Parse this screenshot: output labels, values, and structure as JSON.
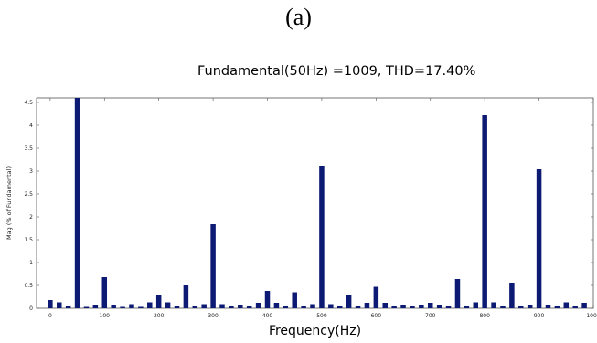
{
  "panel_label": "(a)",
  "chart_data": {
    "type": "bar",
    "title": "Fundamental(50Hz) =1009, THD=17.40%",
    "xlabel": "Frequency(Hz)",
    "ylabel": "Mag (% of Fundamental)",
    "xlim": [
      -25,
      1000
    ],
    "ylim": [
      0,
      4.6
    ],
    "xticks": [
      0,
      100,
      200,
      300,
      400,
      500,
      600,
      700,
      800,
      900,
      1000
    ],
    "xtick_labels": [
      "0",
      "100",
      "200",
      "300",
      "400",
      "500",
      "600",
      "700",
      "800",
      "900",
      "1000"
    ],
    "yticks": [
      0,
      0.5,
      1,
      1.5,
      2,
      2.5,
      3,
      3.5,
      4,
      4.5
    ],
    "ytick_labels": [
      "0",
      "0.5",
      "1",
      "1.5",
      "2",
      "2.5",
      "3",
      "3.5",
      "4",
      "4.5"
    ],
    "bar_color": "#0d1a73",
    "series": [
      {
        "x": [
          0,
          16.67,
          33.33,
          50,
          66.67,
          83.33,
          100,
          116.67,
          133.33,
          150,
          166.67,
          183.33,
          200,
          216.67,
          233.33,
          250,
          266.67,
          283.33,
          300,
          316.67,
          333.33,
          350,
          366.67,
          383.33,
          400,
          416.67,
          433.33,
          450,
          466.67,
          483.33,
          500,
          516.67,
          533.33,
          550,
          566.67,
          583.33,
          600,
          616.67,
          633.33,
          650,
          666.67,
          683.33,
          700,
          716.67,
          733.33,
          750,
          766.67,
          783.33,
          800,
          816.67,
          833.33,
          850,
          866.67,
          883.33,
          900,
          916.67,
          933.33,
          950,
          966.67,
          983.33
        ],
        "values": [
          0.18,
          0.13,
          0.04,
          4.62,
          0.03,
          0.08,
          0.68,
          0.08,
          0.03,
          0.09,
          0.03,
          0.13,
          0.29,
          0.13,
          0.04,
          0.5,
          0.04,
          0.09,
          1.84,
          0.09,
          0.04,
          0.08,
          0.04,
          0.12,
          0.38,
          0.12,
          0.04,
          0.35,
          0.04,
          0.09,
          3.1,
          0.09,
          0.04,
          0.28,
          0.04,
          0.12,
          0.47,
          0.12,
          0.04,
          0.06,
          0.04,
          0.08,
          0.12,
          0.08,
          0.04,
          0.64,
          0.04,
          0.13,
          4.22,
          0.13,
          0.04,
          0.56,
          0.04,
          0.08,
          3.04,
          0.08,
          0.04,
          0.13,
          0.04,
          0.12
        ]
      }
    ]
  }
}
